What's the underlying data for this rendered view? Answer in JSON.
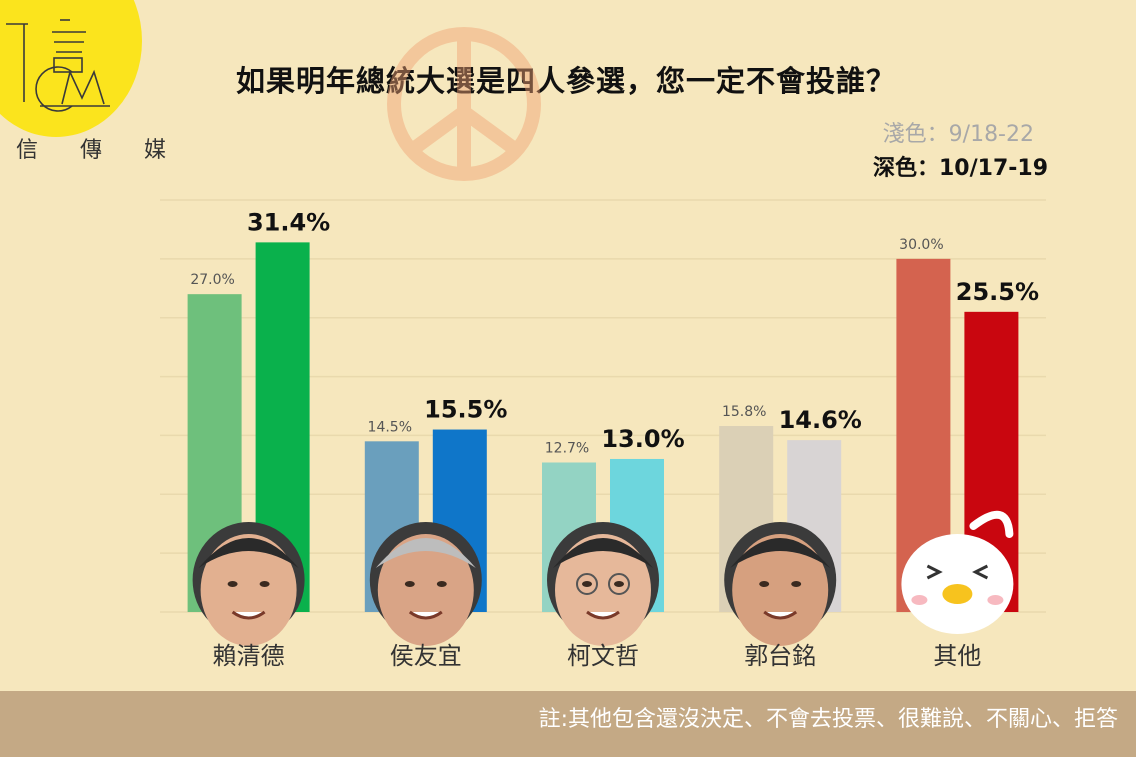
{
  "brand": {
    "name": "信傳媒"
  },
  "title": "如果明年總統大選是四人參選，您一定不會投誰？",
  "legend": {
    "light": "淺色：9/18-22",
    "dark": "深色：10/17-19"
  },
  "footnote": "註:其他包含還沒決定、不會去投票、很難說、不關心、拒答",
  "chart_data": {
    "type": "bar",
    "title": "如果明年總統大選是四人參選，您一定不會投誰？",
    "categories": [
      "賴清德",
      "侯友宜",
      "柯文哲",
      "郭台銘",
      "其他"
    ],
    "series": [
      {
        "name": "淺色：9/18-22",
        "values": [
          27.0,
          14.5,
          12.7,
          15.8,
          30.0
        ],
        "labels": [
          "27.0%",
          "14.5%",
          "12.7%",
          "15.8%",
          "30.0%"
        ]
      },
      {
        "name": "深色：10/17-19",
        "values": [
          31.4,
          15.5,
          13.0,
          14.6,
          25.5
        ],
        "labels": [
          "31.4%",
          "15.5%",
          "13.0%",
          "14.6%",
          "25.5%"
        ]
      }
    ],
    "colors": {
      "light": [
        "#6ec07c",
        "#6a9fbd",
        "#93d3c3",
        "#dbd0b6",
        "#d4634f"
      ],
      "dark": [
        "#0ab14c",
        "#0f76c9",
        "#6dd6dd",
        "#d8d4d4",
        "#c9060f"
      ]
    },
    "ylim": [
      0,
      35
    ],
    "grid": true,
    "legend_position": "top-right"
  }
}
